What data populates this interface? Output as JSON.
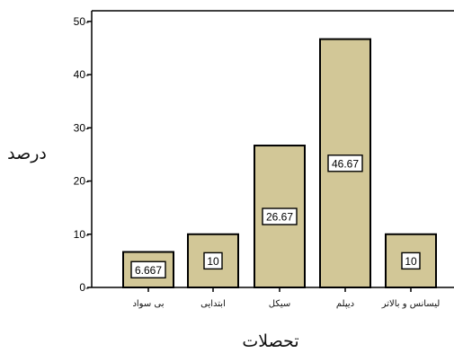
{
  "chart_data": {
    "type": "bar",
    "categories": [
      "بی سواد",
      "ابتدایی",
      "سیکل",
      "دیپلم",
      "لیسانس و بالاتر"
    ],
    "values": [
      6.667,
      10,
      26.67,
      46.67,
      10
    ],
    "data_labels": [
      "6.667",
      "10",
      "26.67",
      "46.67",
      "10"
    ],
    "y_ticks": [
      0,
      10,
      20,
      30,
      40,
      50
    ],
    "ylim": [
      0,
      52
    ],
    "xlabel": "تحصلات",
    "ylabel": "درصد",
    "grid": false,
    "bar_color": "#d2c797",
    "plot_background": "#ffffff",
    "axis_color": "#000000"
  }
}
